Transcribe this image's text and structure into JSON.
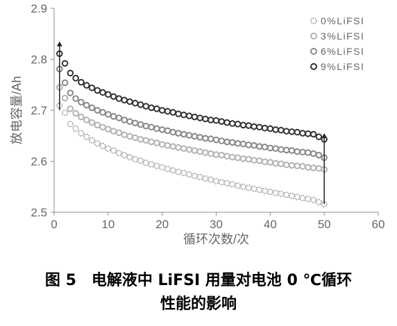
{
  "chart_data": {
    "type": "scatter",
    "xlabel": "循环次数/次",
    "ylabel": "放电容量/Ah",
    "xlim": [
      0,
      60
    ],
    "ylim": [
      2.5,
      2.9
    ],
    "xticks": [
      "0",
      "10",
      "20",
      "30",
      "40",
      "50",
      "60"
    ],
    "yticks": [
      "2.5",
      "2.6",
      "2.7",
      "2.8",
      "2.9"
    ],
    "legend_position": "top-right",
    "grid": false,
    "series": [
      {
        "name": "0%LiFSI",
        "color": "#999999",
        "marker": "dotted-circle",
        "x": [
          1,
          2,
          3,
          4,
          5,
          6,
          7,
          8,
          9,
          10,
          11,
          12,
          13,
          14,
          15,
          16,
          17,
          18,
          19,
          20,
          21,
          22,
          23,
          24,
          25,
          26,
          27,
          28,
          29,
          30,
          31,
          32,
          33,
          34,
          35,
          36,
          37,
          38,
          39,
          40,
          41,
          42,
          43,
          44,
          45,
          46,
          47,
          48,
          49,
          50
        ],
        "y": [
          2.709,
          2.695,
          2.673,
          2.664,
          2.655,
          2.648,
          2.641,
          2.635,
          2.63,
          2.625,
          2.621,
          2.616,
          2.612,
          2.608,
          2.604,
          2.601,
          2.597,
          2.594,
          2.591,
          2.588,
          2.585,
          2.582,
          2.579,
          2.577,
          2.574,
          2.571,
          2.569,
          2.566,
          2.564,
          2.561,
          2.559,
          2.557,
          2.555,
          2.552,
          2.55,
          2.548,
          2.546,
          2.544,
          2.542,
          2.54,
          2.538,
          2.536,
          2.534,
          2.532,
          2.53,
          2.528,
          2.526,
          2.524,
          2.52,
          2.516
        ]
      },
      {
        "name": "3%LiFSI",
        "color": "#b3b3b3",
        "marker": "circle",
        "x": [
          1,
          2,
          3,
          4,
          5,
          6,
          7,
          8,
          9,
          10,
          11,
          12,
          13,
          14,
          15,
          16,
          17,
          18,
          19,
          20,
          21,
          22,
          23,
          24,
          25,
          26,
          27,
          28,
          29,
          30,
          31,
          32,
          33,
          34,
          35,
          36,
          37,
          38,
          39,
          40,
          41,
          42,
          43,
          44,
          45,
          46,
          47,
          48,
          49,
          50
        ],
        "y": [
          2.745,
          2.724,
          2.703,
          2.694,
          2.687,
          2.681,
          2.676,
          2.671,
          2.667,
          2.663,
          2.659,
          2.656,
          2.652,
          2.649,
          2.646,
          2.643,
          2.641,
          2.638,
          2.636,
          2.633,
          2.631,
          2.629,
          2.627,
          2.625,
          2.623,
          2.621,
          2.619,
          2.617,
          2.615,
          2.613,
          2.612,
          2.61,
          2.608,
          2.607,
          2.605,
          2.604,
          2.602,
          2.601,
          2.599,
          2.598,
          2.596,
          2.595,
          2.593,
          2.592,
          2.591,
          2.59,
          2.588,
          2.587,
          2.586,
          2.584
        ]
      },
      {
        "name": "6%LiFSI",
        "color": "#888888",
        "marker": "circle",
        "x": [
          1,
          2,
          3,
          4,
          5,
          6,
          7,
          8,
          9,
          10,
          11,
          12,
          13,
          14,
          15,
          16,
          17,
          18,
          19,
          20,
          21,
          22,
          23,
          24,
          25,
          26,
          27,
          28,
          29,
          30,
          31,
          32,
          33,
          34,
          35,
          36,
          37,
          38,
          39,
          40,
          41,
          42,
          43,
          44,
          45,
          46,
          47,
          48,
          49,
          50
        ],
        "y": [
          2.781,
          2.754,
          2.734,
          2.723,
          2.716,
          2.71,
          2.705,
          2.7,
          2.696,
          2.692,
          2.688,
          2.685,
          2.681,
          2.678,
          2.675,
          2.672,
          2.669,
          2.667,
          2.664,
          2.662,
          2.66,
          2.657,
          2.655,
          2.653,
          2.651,
          2.649,
          2.647,
          2.645,
          2.644,
          2.642,
          2.64,
          2.638,
          2.637,
          2.635,
          2.634,
          2.632,
          2.631,
          2.629,
          2.628,
          2.626,
          2.625,
          2.623,
          2.622,
          2.621,
          2.619,
          2.618,
          2.617,
          2.615,
          2.612,
          2.607
        ]
      },
      {
        "name": "9%LiFSI",
        "color": "#333333",
        "marker": "circle",
        "x": [
          1,
          2,
          3,
          4,
          5,
          6,
          7,
          8,
          9,
          10,
          11,
          12,
          13,
          14,
          15,
          16,
          17,
          18,
          19,
          20,
          21,
          22,
          23,
          24,
          25,
          26,
          27,
          28,
          29,
          30,
          31,
          32,
          33,
          34,
          35,
          36,
          37,
          38,
          39,
          40,
          41,
          42,
          43,
          44,
          45,
          46,
          47,
          48,
          49,
          50
        ],
        "y": [
          2.811,
          2.792,
          2.773,
          2.763,
          2.755,
          2.749,
          2.744,
          2.739,
          2.735,
          2.731,
          2.727,
          2.723,
          2.72,
          2.717,
          2.714,
          2.711,
          2.708,
          2.705,
          2.703,
          2.7,
          2.698,
          2.696,
          2.693,
          2.691,
          2.689,
          2.687,
          2.685,
          2.683,
          2.681,
          2.68,
          2.678,
          2.676,
          2.674,
          2.673,
          2.671,
          2.67,
          2.668,
          2.667,
          2.665,
          2.664,
          2.662,
          2.661,
          2.659,
          2.658,
          2.657,
          2.655,
          2.654,
          2.653,
          2.648,
          2.643
        ]
      }
    ],
    "arrows": [
      {
        "x": 1,
        "from": 2.7,
        "to": 2.835
      },
      {
        "x": 50,
        "from": 2.516,
        "to": 2.655
      }
    ]
  },
  "caption": {
    "line1": "图 5　电解液中 LiFSI 用量对电池 0 ℃循环",
    "line2": "性能的影响"
  }
}
